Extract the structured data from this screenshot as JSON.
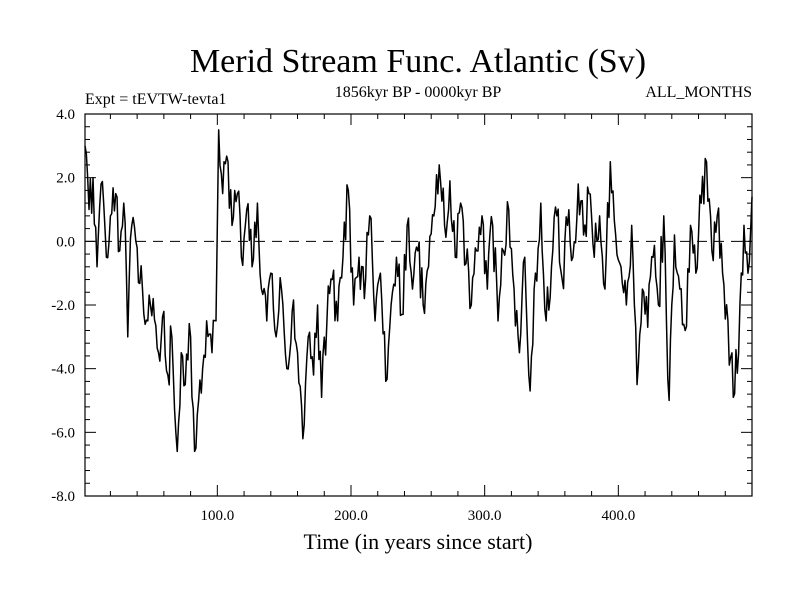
{
  "chart_data": {
    "type": "line",
    "title": "Merid Stream Func. Atlantic (Sv)",
    "subtitle_left": "Expt = tEVTW-tevta1",
    "subtitle_center": "1856kyr BP - 0000kyr BP",
    "subtitle_right": "ALL_MONTHS",
    "xlabel": "Time (in years since start)",
    "ylabel": "",
    "xlim": [
      1,
      500
    ],
    "ylim": [
      -8,
      4
    ],
    "x_ticks": [
      100,
      200,
      300,
      400
    ],
    "x_tick_labels": [
      "100.0",
      "200.0",
      "300.0",
      "400.0"
    ],
    "y_ticks": [
      4,
      2,
      0,
      -2,
      -4,
      -6,
      -8
    ],
    "y_tick_labels": [
      "4.0",
      "2.0",
      "0.0",
      "-2.0",
      "-4.0",
      "-6.0",
      "-8.0"
    ],
    "reference_line": 0,
    "grid": false,
    "series": [
      {
        "name": "Merid Stream Func. Atlantic",
        "color": "#000000",
        "anchors": [
          [
            1,
            3.0
          ],
          [
            4,
            1.0
          ],
          [
            7,
            2.0
          ],
          [
            10,
            -0.8
          ],
          [
            13,
            1.8
          ],
          [
            17,
            -0.5
          ],
          [
            20,
            0.8
          ],
          [
            24,
            1.5
          ],
          [
            27,
            -0.3
          ],
          [
            30,
            1.2
          ],
          [
            33,
            -3.0
          ],
          [
            36,
            0.5
          ],
          [
            40,
            -0.2
          ],
          [
            44,
            -1.5
          ],
          [
            48,
            -2.5
          ],
          [
            52,
            -1.8
          ],
          [
            56,
            -3.5
          ],
          [
            60,
            -2.2
          ],
          [
            63,
            -4.2
          ],
          [
            66,
            -3.0
          ],
          [
            70,
            -6.6
          ],
          [
            73,
            -3.5
          ],
          [
            76,
            -4.5
          ],
          [
            80,
            -3.0
          ],
          [
            83,
            -6.6
          ],
          [
            86,
            -5.0
          ],
          [
            89,
            -4.0
          ],
          [
            92,
            -2.5
          ],
          [
            96,
            -3.5
          ],
          [
            99,
            -2.5
          ],
          [
            101,
            3.5
          ],
          [
            104,
            1.5
          ],
          [
            108,
            2.5
          ],
          [
            111,
            0.5
          ],
          [
            115,
            1.5
          ],
          [
            118,
            -0.5
          ],
          [
            122,
            1.0
          ],
          [
            126,
            -0.8
          ],
          [
            130,
            1.2
          ],
          [
            133,
            -1.5
          ],
          [
            137,
            -2.5
          ],
          [
            140,
            -1.0
          ],
          [
            144,
            -3.0
          ],
          [
            148,
            -1.5
          ],
          [
            152,
            -4.0
          ],
          [
            156,
            -2.2
          ],
          [
            160,
            -3.5
          ],
          [
            164,
            -6.2
          ],
          [
            168,
            -3.0
          ],
          [
            172,
            -4.2
          ],
          [
            175,
            -2.0
          ],
          [
            178,
            -4.9
          ],
          [
            182,
            -2.5
          ],
          [
            186,
            -1.2
          ],
          [
            190,
            -2.5
          ],
          [
            194,
            -0.5
          ],
          [
            198,
            1.6
          ],
          [
            202,
            -2.0
          ],
          [
            206,
            -0.5
          ],
          [
            210,
            -1.8
          ],
          [
            214,
            0.8
          ],
          [
            218,
            -2.5
          ],
          [
            222,
            -1.0
          ],
          [
            226,
            -4.4
          ],
          [
            230,
            -2.0
          ],
          [
            234,
            -0.5
          ],
          [
            238,
            -2.3
          ],
          [
            242,
            0.5
          ],
          [
            246,
            -1.5
          ],
          [
            250,
            -0.3
          ],
          [
            254,
            -2.0
          ],
          [
            258,
            -0.8
          ],
          [
            262,
            0.8
          ],
          [
            266,
            2.4
          ],
          [
            270,
            0.5
          ],
          [
            274,
            1.9
          ],
          [
            278,
            -0.5
          ],
          [
            282,
            1.2
          ],
          [
            286,
            -0.7
          ],
          [
            290,
            -2.0
          ],
          [
            294,
            -0.3
          ],
          [
            298,
            0.8
          ],
          [
            302,
            -1.5
          ],
          [
            306,
            0.5
          ],
          [
            310,
            -2.5
          ],
          [
            314,
            -0.3
          ],
          [
            318,
            1.0
          ],
          [
            322,
            -1.5
          ],
          [
            326,
            -3.5
          ],
          [
            330,
            -0.5
          ],
          [
            334,
            -4.7
          ],
          [
            338,
            -1.0
          ],
          [
            342,
            1.2
          ],
          [
            346,
            -2.5
          ],
          [
            350,
            -0.8
          ],
          [
            354,
            0.8
          ],
          [
            358,
            -1.2
          ],
          [
            362,
            0.5
          ],
          [
            366,
            -0.5
          ],
          [
            370,
            1.8
          ],
          [
            374,
            0.2
          ],
          [
            378,
            1.5
          ],
          [
            382,
            -0.5
          ],
          [
            386,
            0.8
          ],
          [
            390,
            -1.5
          ],
          [
            394,
            2.5
          ],
          [
            398,
            0.2
          ],
          [
            402,
            -0.8
          ],
          [
            406,
            -2.0
          ],
          [
            410,
            0.5
          ],
          [
            414,
            -4.5
          ],
          [
            418,
            -1.5
          ],
          [
            422,
            -2.7
          ],
          [
            426,
            -0.5
          ],
          [
            430,
            -2.0
          ],
          [
            434,
            0.8
          ],
          [
            438,
            -5.0
          ],
          [
            442,
            0.2
          ],
          [
            446,
            -1.5
          ],
          [
            450,
            -2.8
          ],
          [
            454,
            0.5
          ],
          [
            458,
            -1.0
          ],
          [
            462,
            1.2
          ],
          [
            466,
            2.5
          ],
          [
            470,
            -0.3
          ],
          [
            474,
            0.8
          ],
          [
            478,
            -1.0
          ],
          [
            482,
            -2.5
          ],
          [
            486,
            -4.9
          ],
          [
            490,
            -3.5
          ],
          [
            494,
            0.5
          ],
          [
            497,
            -1.0
          ],
          [
            500,
            1.4
          ]
        ]
      }
    ]
  }
}
